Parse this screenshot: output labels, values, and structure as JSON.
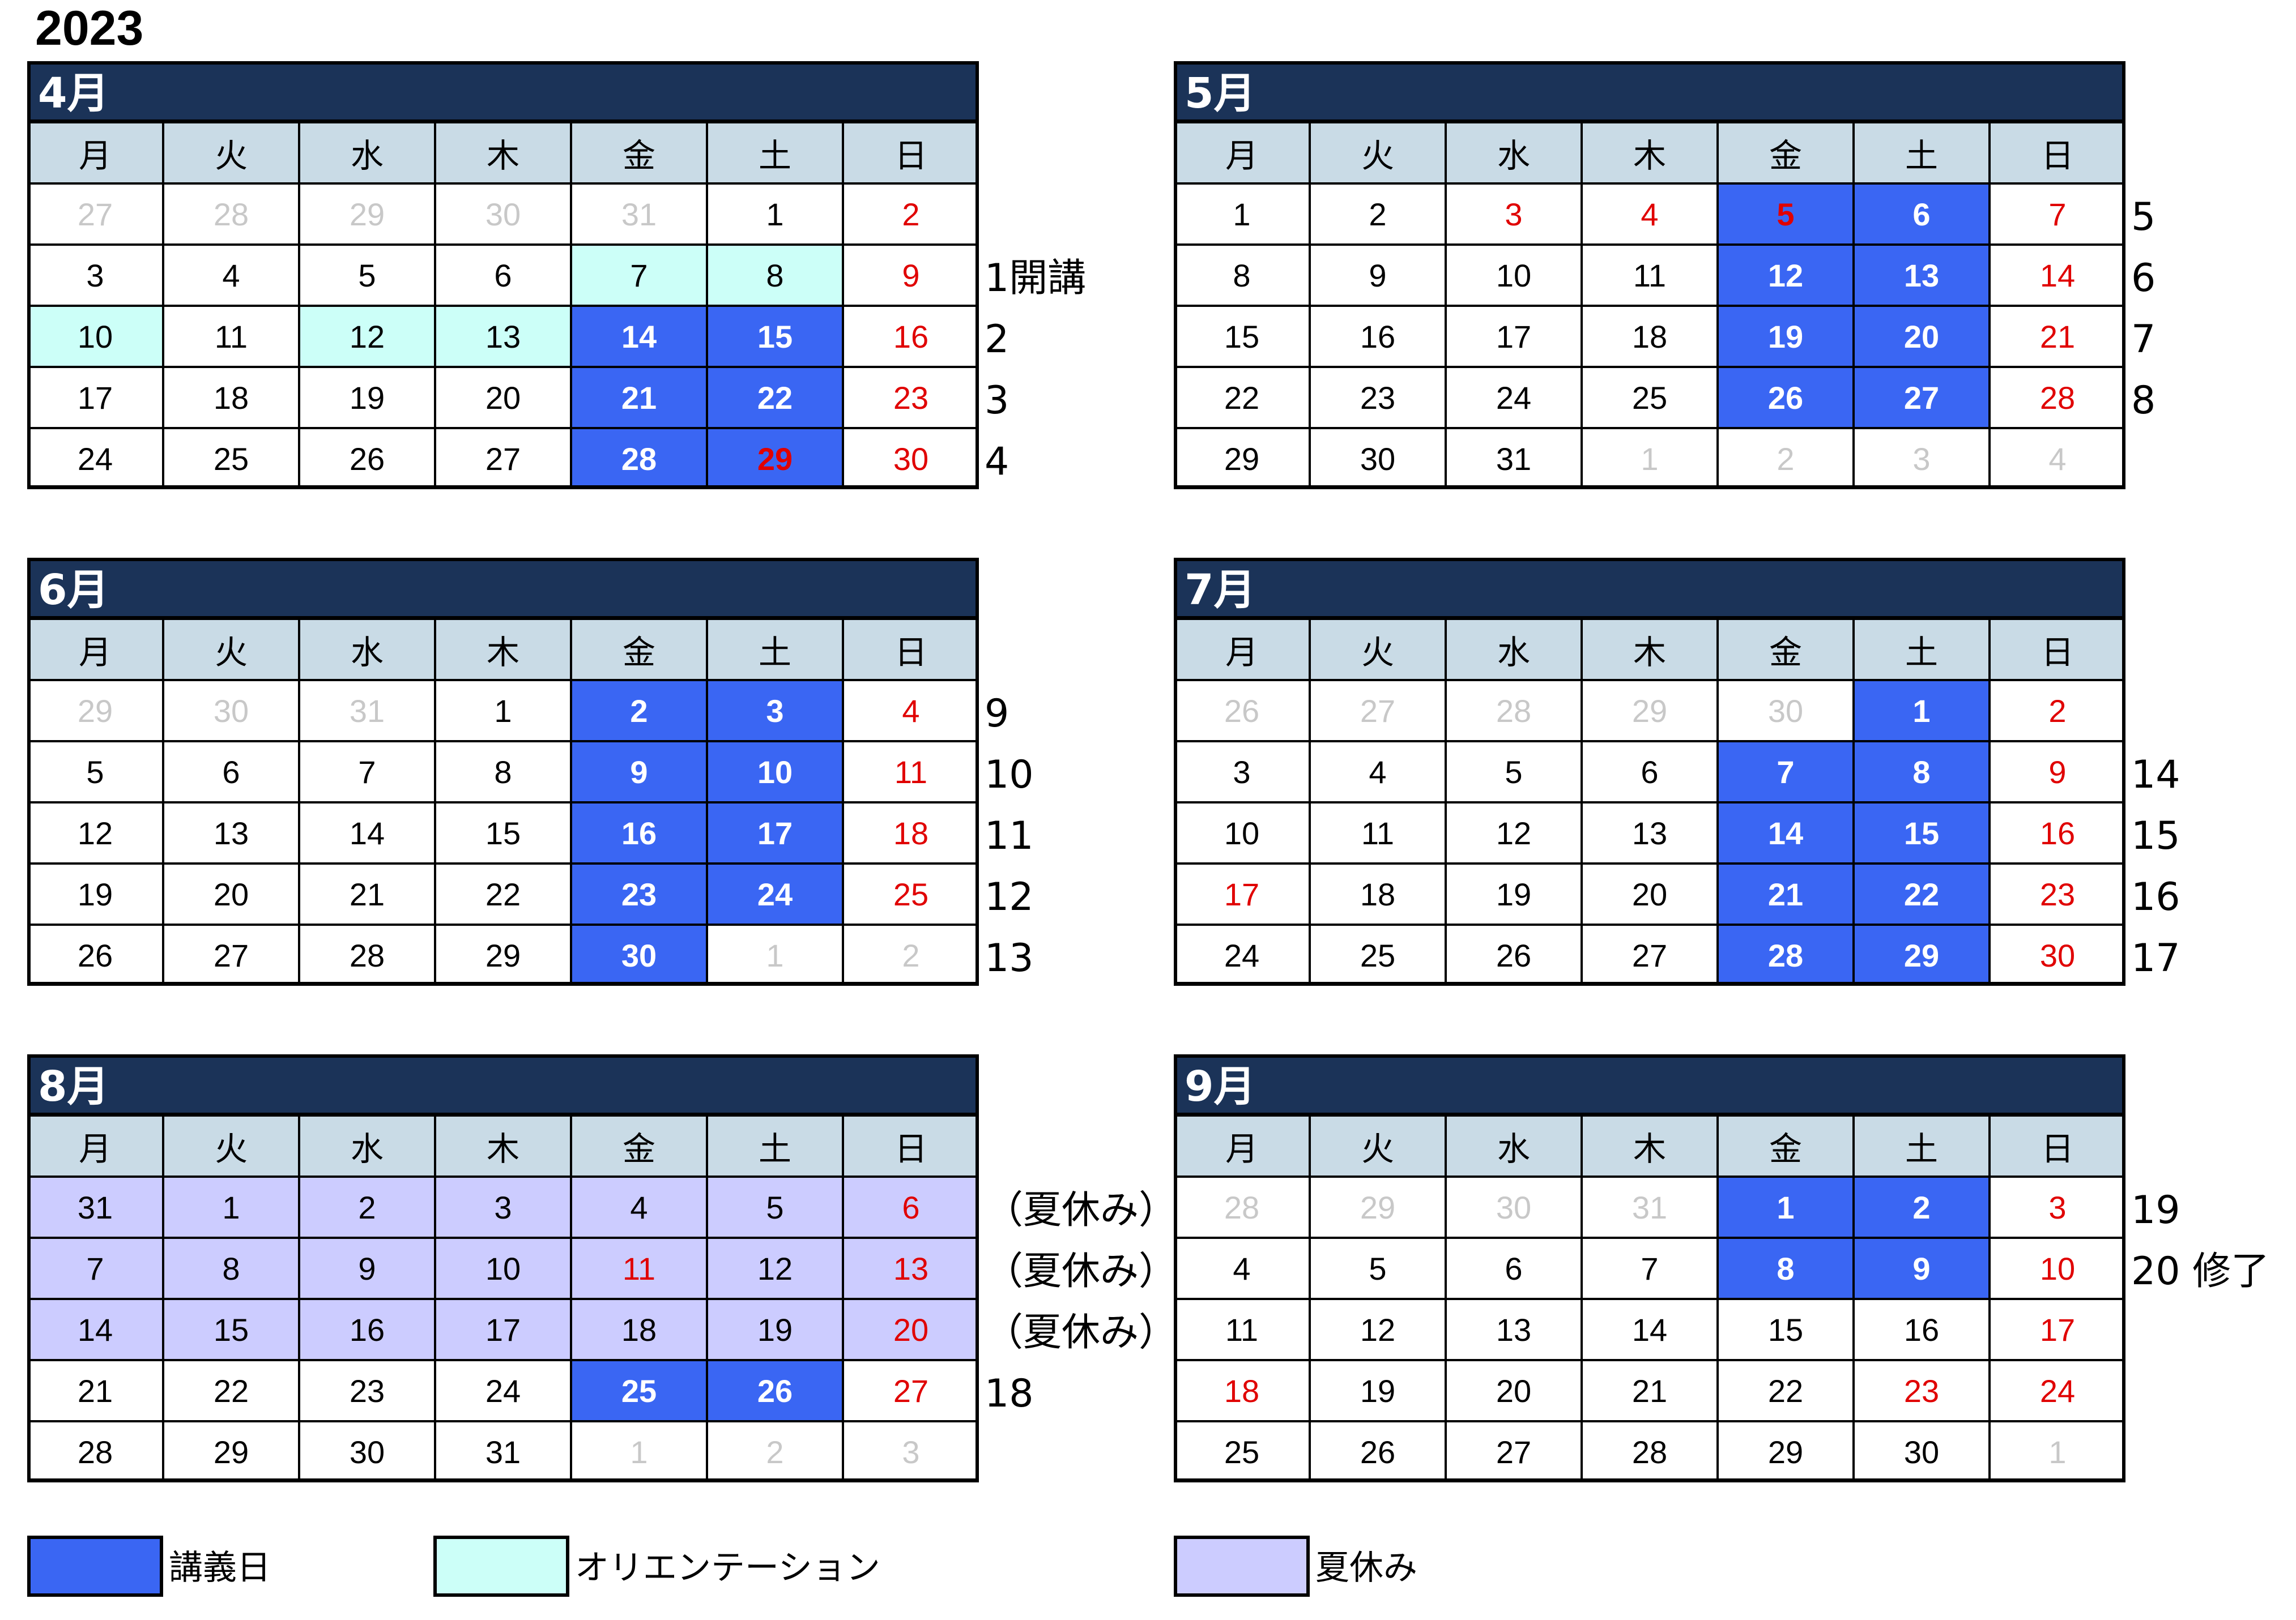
{
  "year": "2023",
  "weekdays": [
    "月",
    "火",
    "水",
    "木",
    "金",
    "土",
    "日"
  ],
  "months": [
    {
      "title": "4月",
      "rows": [
        [
          {
            "d": "27",
            "t": "fade"
          },
          {
            "d": "28",
            "t": "fade"
          },
          {
            "d": "29",
            "t": "fade"
          },
          {
            "d": "30",
            "t": "fade"
          },
          {
            "d": "31",
            "t": "fade"
          },
          {
            "d": "1",
            "t": ""
          },
          {
            "d": "2",
            "t": "red"
          }
        ],
        [
          {
            "d": "3",
            "t": ""
          },
          {
            "d": "4",
            "t": ""
          },
          {
            "d": "5",
            "t": ""
          },
          {
            "d": "6",
            "t": ""
          },
          {
            "d": "7",
            "t": "ori"
          },
          {
            "d": "8",
            "t": "ori"
          },
          {
            "d": "9",
            "t": "red"
          }
        ],
        [
          {
            "d": "10",
            "t": "ori"
          },
          {
            "d": "11",
            "t": ""
          },
          {
            "d": "12",
            "t": "ori"
          },
          {
            "d": "13",
            "t": "ori"
          },
          {
            "d": "14",
            "t": "lec"
          },
          {
            "d": "15",
            "t": "lec"
          },
          {
            "d": "16",
            "t": "red"
          }
        ],
        [
          {
            "d": "17",
            "t": ""
          },
          {
            "d": "18",
            "t": ""
          },
          {
            "d": "19",
            "t": ""
          },
          {
            "d": "20",
            "t": ""
          },
          {
            "d": "21",
            "t": "lec"
          },
          {
            "d": "22",
            "t": "lec"
          },
          {
            "d": "23",
            "t": "red"
          }
        ],
        [
          {
            "d": "24",
            "t": ""
          },
          {
            "d": "25",
            "t": ""
          },
          {
            "d": "26",
            "t": ""
          },
          {
            "d": "27",
            "t": ""
          },
          {
            "d": "28",
            "t": "lec"
          },
          {
            "d": "29",
            "t": "lec red"
          },
          {
            "d": "30",
            "t": "red"
          }
        ]
      ],
      "notes": [
        "",
        "1開講",
        "2",
        "3",
        "4"
      ]
    },
    {
      "title": "5月",
      "rows": [
        [
          {
            "d": "1",
            "t": ""
          },
          {
            "d": "2",
            "t": ""
          },
          {
            "d": "3",
            "t": "red"
          },
          {
            "d": "4",
            "t": "red"
          },
          {
            "d": "5",
            "t": "lec red"
          },
          {
            "d": "6",
            "t": "lec"
          },
          {
            "d": "7",
            "t": "red"
          }
        ],
        [
          {
            "d": "8",
            "t": ""
          },
          {
            "d": "9",
            "t": ""
          },
          {
            "d": "10",
            "t": ""
          },
          {
            "d": "11",
            "t": ""
          },
          {
            "d": "12",
            "t": "lec"
          },
          {
            "d": "13",
            "t": "lec"
          },
          {
            "d": "14",
            "t": "red"
          }
        ],
        [
          {
            "d": "15",
            "t": ""
          },
          {
            "d": "16",
            "t": ""
          },
          {
            "d": "17",
            "t": ""
          },
          {
            "d": "18",
            "t": ""
          },
          {
            "d": "19",
            "t": "lec"
          },
          {
            "d": "20",
            "t": "lec"
          },
          {
            "d": "21",
            "t": "red"
          }
        ],
        [
          {
            "d": "22",
            "t": ""
          },
          {
            "d": "23",
            "t": ""
          },
          {
            "d": "24",
            "t": ""
          },
          {
            "d": "25",
            "t": ""
          },
          {
            "d": "26",
            "t": "lec"
          },
          {
            "d": "27",
            "t": "lec"
          },
          {
            "d": "28",
            "t": "red"
          }
        ],
        [
          {
            "d": "29",
            "t": ""
          },
          {
            "d": "30",
            "t": ""
          },
          {
            "d": "31",
            "t": ""
          },
          {
            "d": "1",
            "t": "fade"
          },
          {
            "d": "2",
            "t": "fade"
          },
          {
            "d": "3",
            "t": "fade"
          },
          {
            "d": "4",
            "t": "fade"
          }
        ]
      ],
      "notes": [
        "5",
        "6",
        "7",
        "8",
        ""
      ]
    },
    {
      "title": "6月",
      "rows": [
        [
          {
            "d": "29",
            "t": "fade"
          },
          {
            "d": "30",
            "t": "fade"
          },
          {
            "d": "31",
            "t": "fade"
          },
          {
            "d": "1",
            "t": ""
          },
          {
            "d": "2",
            "t": "lec"
          },
          {
            "d": "3",
            "t": "lec"
          },
          {
            "d": "4",
            "t": "red"
          }
        ],
        [
          {
            "d": "5",
            "t": ""
          },
          {
            "d": "6",
            "t": ""
          },
          {
            "d": "7",
            "t": ""
          },
          {
            "d": "8",
            "t": ""
          },
          {
            "d": "9",
            "t": "lec"
          },
          {
            "d": "10",
            "t": "lec"
          },
          {
            "d": "11",
            "t": "red"
          }
        ],
        [
          {
            "d": "12",
            "t": ""
          },
          {
            "d": "13",
            "t": ""
          },
          {
            "d": "14",
            "t": ""
          },
          {
            "d": "15",
            "t": ""
          },
          {
            "d": "16",
            "t": "lec"
          },
          {
            "d": "17",
            "t": "lec"
          },
          {
            "d": "18",
            "t": "red"
          }
        ],
        [
          {
            "d": "19",
            "t": ""
          },
          {
            "d": "20",
            "t": ""
          },
          {
            "d": "21",
            "t": ""
          },
          {
            "d": "22",
            "t": ""
          },
          {
            "d": "23",
            "t": "lec"
          },
          {
            "d": "24",
            "t": "lec"
          },
          {
            "d": "25",
            "t": "red"
          }
        ],
        [
          {
            "d": "26",
            "t": ""
          },
          {
            "d": "27",
            "t": ""
          },
          {
            "d": "28",
            "t": ""
          },
          {
            "d": "29",
            "t": ""
          },
          {
            "d": "30",
            "t": "lec"
          },
          {
            "d": "1",
            "t": "fade"
          },
          {
            "d": "2",
            "t": "fade"
          }
        ]
      ],
      "notes": [
        "9",
        "10",
        "11",
        "12",
        "13"
      ]
    },
    {
      "title": "7月",
      "rows": [
        [
          {
            "d": "26",
            "t": "fade"
          },
          {
            "d": "27",
            "t": "fade"
          },
          {
            "d": "28",
            "t": "fade"
          },
          {
            "d": "29",
            "t": "fade"
          },
          {
            "d": "30",
            "t": "fade"
          },
          {
            "d": "1",
            "t": "lec"
          },
          {
            "d": "2",
            "t": "red"
          }
        ],
        [
          {
            "d": "3",
            "t": ""
          },
          {
            "d": "4",
            "t": ""
          },
          {
            "d": "5",
            "t": ""
          },
          {
            "d": "6",
            "t": ""
          },
          {
            "d": "7",
            "t": "lec"
          },
          {
            "d": "8",
            "t": "lec"
          },
          {
            "d": "9",
            "t": "red"
          }
        ],
        [
          {
            "d": "10",
            "t": ""
          },
          {
            "d": "11",
            "t": ""
          },
          {
            "d": "12",
            "t": ""
          },
          {
            "d": "13",
            "t": ""
          },
          {
            "d": "14",
            "t": "lec"
          },
          {
            "d": "15",
            "t": "lec"
          },
          {
            "d": "16",
            "t": "red"
          }
        ],
        [
          {
            "d": "17",
            "t": "red"
          },
          {
            "d": "18",
            "t": ""
          },
          {
            "d": "19",
            "t": ""
          },
          {
            "d": "20",
            "t": ""
          },
          {
            "d": "21",
            "t": "lec"
          },
          {
            "d": "22",
            "t": "lec"
          },
          {
            "d": "23",
            "t": "red"
          }
        ],
        [
          {
            "d": "24",
            "t": ""
          },
          {
            "d": "25",
            "t": ""
          },
          {
            "d": "26",
            "t": ""
          },
          {
            "d": "27",
            "t": ""
          },
          {
            "d": "28",
            "t": "lec"
          },
          {
            "d": "29",
            "t": "lec"
          },
          {
            "d": "30",
            "t": "red"
          }
        ]
      ],
      "notes": [
        "",
        "14",
        "15",
        "16",
        "17"
      ]
    },
    {
      "title": "8月",
      "rows": [
        [
          {
            "d": "31",
            "t": "sum"
          },
          {
            "d": "1",
            "t": "sum"
          },
          {
            "d": "2",
            "t": "sum"
          },
          {
            "d": "3",
            "t": "sum"
          },
          {
            "d": "4",
            "t": "sum"
          },
          {
            "d": "5",
            "t": "sum"
          },
          {
            "d": "6",
            "t": "sum red"
          }
        ],
        [
          {
            "d": "7",
            "t": "sum"
          },
          {
            "d": "8",
            "t": "sum"
          },
          {
            "d": "9",
            "t": "sum"
          },
          {
            "d": "10",
            "t": "sum"
          },
          {
            "d": "11",
            "t": "sum red"
          },
          {
            "d": "12",
            "t": "sum"
          },
          {
            "d": "13",
            "t": "sum red"
          }
        ],
        [
          {
            "d": "14",
            "t": "sum"
          },
          {
            "d": "15",
            "t": "sum"
          },
          {
            "d": "16",
            "t": "sum"
          },
          {
            "d": "17",
            "t": "sum"
          },
          {
            "d": "18",
            "t": "sum"
          },
          {
            "d": "19",
            "t": "sum"
          },
          {
            "d": "20",
            "t": "sum red"
          }
        ],
        [
          {
            "d": "21",
            "t": ""
          },
          {
            "d": "22",
            "t": ""
          },
          {
            "d": "23",
            "t": ""
          },
          {
            "d": "24",
            "t": ""
          },
          {
            "d": "25",
            "t": "lec"
          },
          {
            "d": "26",
            "t": "lec"
          },
          {
            "d": "27",
            "t": "red"
          }
        ],
        [
          {
            "d": "28",
            "t": ""
          },
          {
            "d": "29",
            "t": ""
          },
          {
            "d": "30",
            "t": ""
          },
          {
            "d": "31",
            "t": ""
          },
          {
            "d": "1",
            "t": "fade"
          },
          {
            "d": "2",
            "t": "fade"
          },
          {
            "d": "3",
            "t": "fade"
          }
        ]
      ],
      "notes": [
        "（夏休み）",
        "（夏休み）",
        "（夏休み）",
        "18",
        ""
      ]
    },
    {
      "title": "9月",
      "rows": [
        [
          {
            "d": "28",
            "t": "fade"
          },
          {
            "d": "29",
            "t": "fade"
          },
          {
            "d": "30",
            "t": "fade"
          },
          {
            "d": "31",
            "t": "fade"
          },
          {
            "d": "1",
            "t": "lec"
          },
          {
            "d": "2",
            "t": "lec"
          },
          {
            "d": "3",
            "t": "red"
          }
        ],
        [
          {
            "d": "4",
            "t": ""
          },
          {
            "d": "5",
            "t": ""
          },
          {
            "d": "6",
            "t": ""
          },
          {
            "d": "7",
            "t": ""
          },
          {
            "d": "8",
            "t": "lec"
          },
          {
            "d": "9",
            "t": "lec"
          },
          {
            "d": "10",
            "t": "red"
          }
        ],
        [
          {
            "d": "11",
            "t": ""
          },
          {
            "d": "12",
            "t": ""
          },
          {
            "d": "13",
            "t": ""
          },
          {
            "d": "14",
            "t": ""
          },
          {
            "d": "15",
            "t": ""
          },
          {
            "d": "16",
            "t": ""
          },
          {
            "d": "17",
            "t": "red"
          }
        ],
        [
          {
            "d": "18",
            "t": "red"
          },
          {
            "d": "19",
            "t": ""
          },
          {
            "d": "20",
            "t": ""
          },
          {
            "d": "21",
            "t": ""
          },
          {
            "d": "22",
            "t": ""
          },
          {
            "d": "23",
            "t": "red"
          },
          {
            "d": "24",
            "t": "red"
          }
        ],
        [
          {
            "d": "25",
            "t": ""
          },
          {
            "d": "26",
            "t": ""
          },
          {
            "d": "27",
            "t": ""
          },
          {
            "d": "28",
            "t": ""
          },
          {
            "d": "29",
            "t": ""
          },
          {
            "d": "30",
            "t": ""
          },
          {
            "d": "1",
            "t": "fade"
          }
        ]
      ],
      "notes": [
        "19",
        "20 修了",
        "",
        "",
        ""
      ]
    }
  ],
  "legend": [
    {
      "label": "講義日",
      "color": "#3a66f3"
    },
    {
      "label": "オリエンテーション",
      "color": "#ccfff8"
    },
    {
      "label": "夏休み",
      "color": "#ccccff"
    }
  ],
  "colors": {
    "header_bg": "#1b3358",
    "weekday_bg": "#c9dbe6",
    "lecture": "#3a66f3",
    "orientation": "#ccfff8",
    "summer": "#ccccff",
    "holiday_text": "#e00000",
    "outside_month_text": "#c8c8c8"
  }
}
